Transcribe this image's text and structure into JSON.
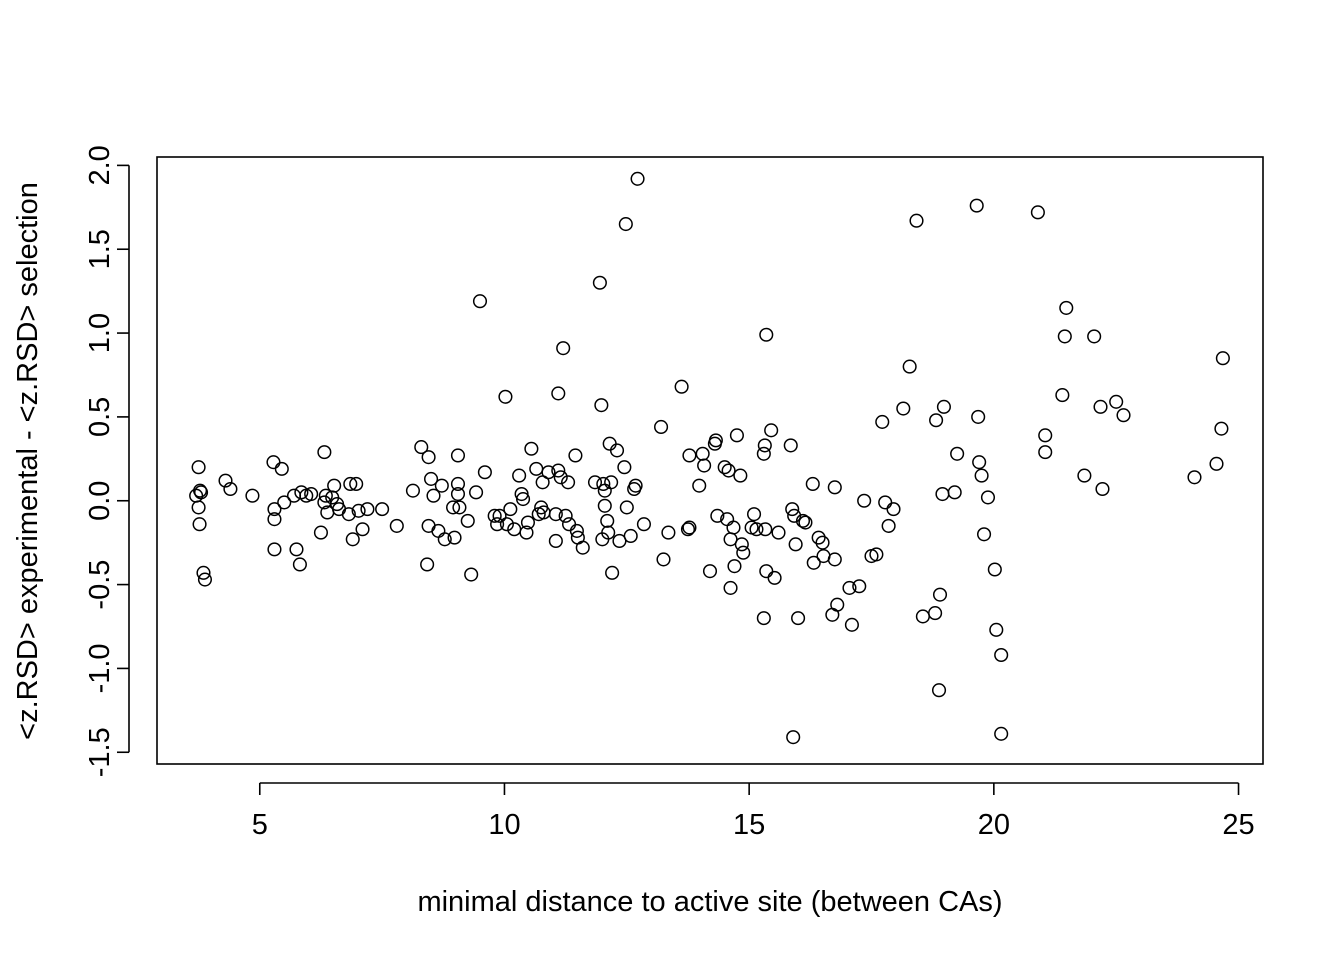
{
  "chart_data": {
    "type": "scatter",
    "xlabel": "minimal distance to active site (between CAs)",
    "ylabel": "<z.RSD> experimental - <z.RSD> selection",
    "xlim": [
      2.9,
      25.5
    ],
    "ylim": [
      -1.57,
      2.05
    ],
    "x_ticks": [
      5,
      10,
      15,
      20,
      25
    ],
    "x_tick_labels": [
      "5",
      "10",
      "15",
      "20",
      "25"
    ],
    "y_ticks": [
      -1.5,
      -1.0,
      -0.5,
      0.0,
      0.5,
      1.0,
      1.5,
      2.0
    ],
    "y_tick_labels": [
      "-1.5",
      "-1.0",
      "-0.5",
      "0.0",
      "0.5",
      "1.0",
      "1.5",
      "2.0"
    ],
    "grid": false,
    "marker": "open-circle",
    "series": [
      {
        "points": [
          [
            3.75,
            0.2
          ],
          [
            3.7,
            0.03
          ],
          [
            3.78,
            0.06
          ],
          [
            3.75,
            -0.04
          ],
          [
            3.8,
            0.05
          ],
          [
            3.77,
            -0.14
          ],
          [
            3.85,
            -0.43
          ],
          [
            3.88,
            -0.47
          ],
          [
            4.3,
            0.12
          ],
          [
            4.4,
            0.07
          ],
          [
            4.85,
            0.03
          ],
          [
            5.28,
            0.23
          ],
          [
            5.3,
            -0.05
          ],
          [
            5.3,
            -0.11
          ],
          [
            5.3,
            -0.29
          ],
          [
            5.45,
            0.19
          ],
          [
            5.5,
            -0.01
          ],
          [
            5.7,
            0.03
          ],
          [
            5.75,
            -0.29
          ],
          [
            5.82,
            -0.38
          ],
          [
            5.85,
            0.05
          ],
          [
            5.95,
            0.03
          ],
          [
            6.05,
            0.04
          ],
          [
            6.25,
            -0.19
          ],
          [
            6.32,
            0.29
          ],
          [
            6.32,
            -0.01
          ],
          [
            6.35,
            0.03
          ],
          [
            6.38,
            -0.07
          ],
          [
            6.48,
            0.02
          ],
          [
            6.52,
            0.09
          ],
          [
            6.58,
            -0.02
          ],
          [
            6.62,
            -0.05
          ],
          [
            6.82,
            -0.08
          ],
          [
            6.85,
            0.1
          ],
          [
            6.9,
            -0.23
          ],
          [
            6.97,
            0.1
          ],
          [
            7.02,
            -0.06
          ],
          [
            7.1,
            -0.17
          ],
          [
            7.2,
            -0.05
          ],
          [
            7.5,
            -0.05
          ],
          [
            7.8,
            -0.15
          ],
          [
            8.13,
            0.06
          ],
          [
            8.3,
            0.32
          ],
          [
            8.45,
            0.26
          ],
          [
            8.42,
            -0.38
          ],
          [
            8.45,
            -0.15
          ],
          [
            8.5,
            0.13
          ],
          [
            8.55,
            0.03
          ],
          [
            8.65,
            -0.18
          ],
          [
            8.72,
            0.09
          ],
          [
            8.78,
            -0.23
          ],
          [
            8.95,
            -0.04
          ],
          [
            8.98,
            -0.22
          ],
          [
            9.05,
            0.27
          ],
          [
            9.05,
            0.1
          ],
          [
            9.05,
            0.04
          ],
          [
            9.08,
            -0.04
          ],
          [
            9.25,
            -0.12
          ],
          [
            9.32,
            -0.44
          ],
          [
            9.42,
            0.05
          ],
          [
            9.5,
            1.19
          ],
          [
            9.6,
            0.17
          ],
          [
            9.8,
            -0.09
          ],
          [
            9.85,
            -0.14
          ],
          [
            9.9,
            -0.09
          ],
          [
            10.02,
            0.62
          ],
          [
            10.05,
            -0.14
          ],
          [
            10.12,
            -0.05
          ],
          [
            10.2,
            -0.17
          ],
          [
            10.3,
            0.15
          ],
          [
            10.35,
            0.04
          ],
          [
            10.38,
            0.01
          ],
          [
            10.45,
            -0.19
          ],
          [
            10.48,
            -0.13
          ],
          [
            10.55,
            0.31
          ],
          [
            10.65,
            0.19
          ],
          [
            10.7,
            -0.08
          ],
          [
            10.75,
            -0.04
          ],
          [
            10.78,
            0.11
          ],
          [
            10.8,
            -0.07
          ],
          [
            10.9,
            0.17
          ],
          [
            11.05,
            -0.08
          ],
          [
            11.05,
            -0.24
          ],
          [
            11.1,
            0.64
          ],
          [
            11.1,
            0.18
          ],
          [
            11.15,
            0.14
          ],
          [
            11.2,
            0.91
          ],
          [
            11.25,
            -0.09
          ],
          [
            11.3,
            0.11
          ],
          [
            11.32,
            -0.14
          ],
          [
            11.45,
            0.27
          ],
          [
            11.48,
            -0.18
          ],
          [
            11.5,
            -0.22
          ],
          [
            11.6,
            -0.28
          ],
          [
            11.85,
            0.11
          ],
          [
            11.95,
            1.3
          ],
          [
            11.98,
            0.57
          ],
          [
            12.0,
            -0.23
          ],
          [
            12.02,
            0.1
          ],
          [
            12.05,
            -0.03
          ],
          [
            12.05,
            0.06
          ],
          [
            12.1,
            -0.12
          ],
          [
            12.12,
            -0.19
          ],
          [
            12.15,
            0.34
          ],
          [
            12.18,
            0.11
          ],
          [
            12.2,
            -0.43
          ],
          [
            12.3,
            0.3
          ],
          [
            12.35,
            -0.24
          ],
          [
            12.45,
            0.2
          ],
          [
            12.48,
            1.65
          ],
          [
            12.5,
            -0.04
          ],
          [
            12.58,
            -0.21
          ],
          [
            12.65,
            0.07
          ],
          [
            12.68,
            0.09
          ],
          [
            12.72,
            1.92
          ],
          [
            12.85,
            -0.14
          ],
          [
            13.2,
            0.44
          ],
          [
            13.25,
            -0.35
          ],
          [
            13.35,
            -0.19
          ],
          [
            13.62,
            0.68
          ],
          [
            13.75,
            -0.17
          ],
          [
            13.78,
            0.27
          ],
          [
            13.78,
            -0.16
          ],
          [
            13.98,
            0.09
          ],
          [
            14.05,
            0.28
          ],
          [
            14.08,
            0.21
          ],
          [
            14.2,
            -0.42
          ],
          [
            14.3,
            0.34
          ],
          [
            14.32,
            0.36
          ],
          [
            14.35,
            -0.09
          ],
          [
            14.5,
            0.2
          ],
          [
            14.55,
            -0.11
          ],
          [
            14.58,
            0.18
          ],
          [
            14.62,
            -0.23
          ],
          [
            14.62,
            -0.52
          ],
          [
            14.68,
            -0.16
          ],
          [
            14.7,
            -0.39
          ],
          [
            14.75,
            0.39
          ],
          [
            14.82,
            0.15
          ],
          [
            14.85,
            -0.26
          ],
          [
            14.88,
            -0.31
          ],
          [
            15.05,
            -0.16
          ],
          [
            15.1,
            -0.08
          ],
          [
            15.15,
            -0.17
          ],
          [
            15.3,
            0.28
          ],
          [
            15.32,
            0.33
          ],
          [
            15.33,
            -0.17
          ],
          [
            15.35,
            0.99
          ],
          [
            15.35,
            -0.42
          ],
          [
            15.3,
            -0.7
          ],
          [
            15.45,
            0.42
          ],
          [
            15.52,
            -0.46
          ],
          [
            15.6,
            -0.19
          ],
          [
            15.85,
            0.33
          ],
          [
            15.88,
            -0.05
          ],
          [
            15.92,
            -0.09
          ],
          [
            15.95,
            -0.26
          ],
          [
            15.9,
            -1.41
          ],
          [
            16.0,
            -0.7
          ],
          [
            16.1,
            -0.12
          ],
          [
            16.15,
            -0.13
          ],
          [
            16.3,
            0.1
          ],
          [
            16.32,
            -0.37
          ],
          [
            16.42,
            -0.22
          ],
          [
            16.5,
            -0.25
          ],
          [
            16.52,
            -0.33
          ],
          [
            16.7,
            -0.68
          ],
          [
            16.75,
            0.08
          ],
          [
            16.75,
            -0.35
          ],
          [
            16.8,
            -0.62
          ],
          [
            17.05,
            -0.52
          ],
          [
            17.1,
            -0.74
          ],
          [
            17.25,
            -0.51
          ],
          [
            17.35,
            0.0
          ],
          [
            17.5,
            -0.33
          ],
          [
            17.6,
            -0.32
          ],
          [
            17.72,
            0.47
          ],
          [
            17.78,
            -0.01
          ],
          [
            17.85,
            -0.15
          ],
          [
            17.95,
            -0.05
          ],
          [
            18.15,
            0.55
          ],
          [
            18.28,
            0.8
          ],
          [
            18.42,
            1.67
          ],
          [
            18.55,
            -0.69
          ],
          [
            18.8,
            -0.67
          ],
          [
            18.82,
            0.48
          ],
          [
            18.88,
            -1.13
          ],
          [
            18.9,
            -0.56
          ],
          [
            18.95,
            0.04
          ],
          [
            18.98,
            0.56
          ],
          [
            19.2,
            0.05
          ],
          [
            19.25,
            0.28
          ],
          [
            19.65,
            1.76
          ],
          [
            19.68,
            0.5
          ],
          [
            19.7,
            0.23
          ],
          [
            19.75,
            0.15
          ],
          [
            19.8,
            -0.2
          ],
          [
            19.88,
            0.02
          ],
          [
            20.02,
            -0.41
          ],
          [
            20.05,
            -0.77
          ],
          [
            20.15,
            -0.92
          ],
          [
            20.15,
            -1.39
          ],
          [
            20.9,
            1.72
          ],
          [
            21.05,
            0.29
          ],
          [
            21.05,
            0.39
          ],
          [
            21.4,
            0.63
          ],
          [
            21.45,
            0.98
          ],
          [
            21.48,
            1.15
          ],
          [
            21.85,
            0.15
          ],
          [
            22.05,
            0.98
          ],
          [
            22.18,
            0.56
          ],
          [
            22.22,
            0.07
          ],
          [
            22.5,
            0.59
          ],
          [
            22.65,
            0.51
          ],
          [
            24.1,
            0.14
          ],
          [
            24.55,
            0.22
          ],
          [
            24.65,
            0.43
          ],
          [
            24.68,
            0.85
          ]
        ]
      }
    ]
  }
}
